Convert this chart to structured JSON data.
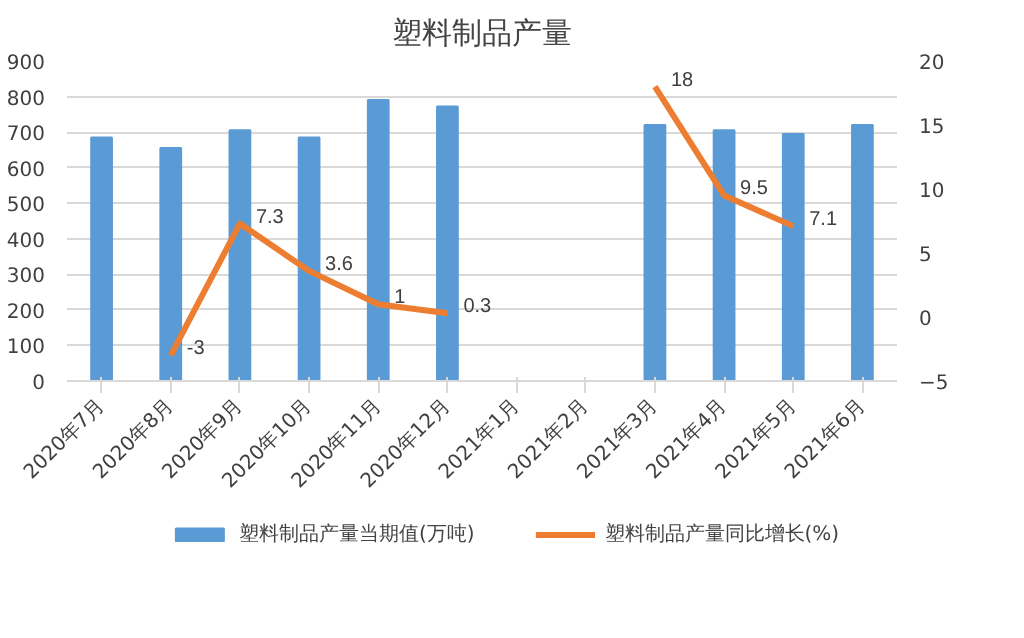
{
  "chart_data": {
    "type": "bar",
    "title": "塑料制品产量",
    "categories": [
      "2020年7月",
      "2020年8月",
      "2020年9月",
      "2020年10月",
      "2020年11月",
      "2020年12月",
      "2021年1月",
      "2021年2月",
      "2021年3月",
      "2021年4月",
      "2021年5月",
      "2021年6月"
    ],
    "series": [
      {
        "name": "塑料制品产量当期值(万吨)",
        "color": "#5b9bd5",
        "values": [
          685,
          655,
          705,
          685,
          790,
          772,
          null,
          null,
          720,
          705,
          695,
          720
        ]
      },
      {
        "name": "塑料制品产量同比增长(%)",
        "type": "line",
        "axis": "y2",
        "color": "#ed7d31",
        "values": [
          null,
          -3,
          7.3,
          3.6,
          1,
          0.3,
          null,
          null,
          18,
          9.5,
          7.1,
          null
        ],
        "value_labels": [
          null,
          "-3",
          "7.3",
          "3.6",
          "1",
          "0.3",
          null,
          null,
          "18",
          "9.5",
          "7.1",
          null
        ]
      }
    ],
    "ylim": [
      0,
      900
    ],
    "yticks": [
      0,
      100,
      200,
      300,
      400,
      500,
      600,
      700,
      800,
      900
    ],
    "y2lim": [
      -5,
      20
    ],
    "y2ticks": [
      -5,
      0,
      5,
      10,
      15,
      20
    ],
    "grid": "y",
    "legend": "bottom",
    "marker": "none",
    "line_style": "solid"
  }
}
